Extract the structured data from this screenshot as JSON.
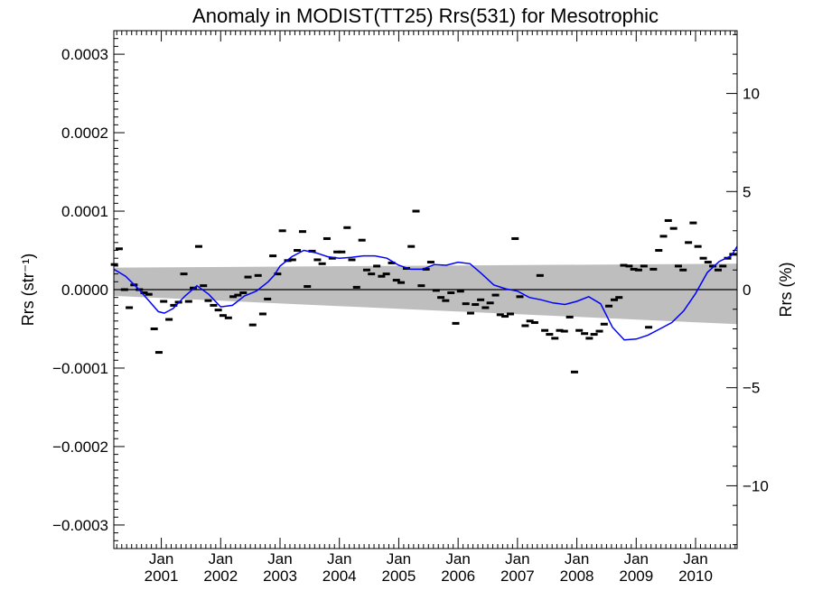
{
  "chart_data": {
    "type": "line",
    "title": "Anomaly in MODIST(TT25) Rrs(531) for Mesotrophic",
    "ylabel_left": "Rrs (str⁻¹)",
    "ylabel_right": "Rrs (%)",
    "xlim": [
      2000.2,
      2010.7
    ],
    "ylim": [
      -0.00033,
      0.00033
    ],
    "ylim_right": [
      -13.2,
      13.2
    ],
    "grid": false,
    "zero_line": true,
    "x_ticks": [
      {
        "month": "Jan",
        "year": "2001"
      },
      {
        "month": "Jan",
        "year": "2002"
      },
      {
        "month": "Jan",
        "year": "2003"
      },
      {
        "month": "Jan",
        "year": "2004"
      },
      {
        "month": "Jan",
        "year": "2005"
      },
      {
        "month": "Jan",
        "year": "2006"
      },
      {
        "month": "Jan",
        "year": "2007"
      },
      {
        "month": "Jan",
        "year": "2008"
      },
      {
        "month": "Jan",
        "year": "2009"
      },
      {
        "month": "Jan",
        "year": "2010"
      }
    ],
    "y_ticks_left": [
      {
        "v": 0.0003,
        "label": "0.0003"
      },
      {
        "v": 0.0002,
        "label": "0.0002"
      },
      {
        "v": 0.0001,
        "label": "0.0001"
      },
      {
        "v": 0.0,
        "label": "0.0000"
      },
      {
        "v": -0.0001,
        "label": "−0.0001"
      },
      {
        "v": -0.0002,
        "label": "−0.0002"
      },
      {
        "v": -0.0003,
        "label": "−0.0003"
      }
    ],
    "y_ticks_right": [
      {
        "v": 10,
        "label": "10"
      },
      {
        "v": 5,
        "label": "5"
      },
      {
        "v": 0,
        "label": "0"
      },
      {
        "v": -5,
        "label": "−5"
      },
      {
        "v": -10,
        "label": "−10"
      }
    ],
    "band": {
      "color": "#bebebe",
      "x": [
        2000.2,
        2010.7
      ],
      "upper": [
        2.8e-05,
        3.3e-05
      ],
      "lower": [
        -8e-06,
        -4.4e-05
      ]
    },
    "series": [
      {
        "kind": "points",
        "color": "#000000",
        "x": [
          2000.21,
          2000.29,
          2000.38,
          2000.46,
          2000.54,
          2000.63,
          2000.71,
          2000.79,
          2000.88,
          2000.96,
          2001.04,
          2001.13,
          2001.21,
          2001.29,
          2001.38,
          2001.46,
          2001.54,
          2001.63,
          2001.71,
          2001.79,
          2001.88,
          2001.96,
          2002.04,
          2002.13,
          2002.21,
          2002.29,
          2002.38,
          2002.46,
          2002.54,
          2002.63,
          2002.71,
          2002.79,
          2002.88,
          2002.96,
          2003.04,
          2003.13,
          2003.21,
          2003.29,
          2003.38,
          2003.46,
          2003.54,
          2003.63,
          2003.71,
          2003.79,
          2003.88,
          2003.96,
          2004.04,
          2004.13,
          2004.21,
          2004.29,
          2004.38,
          2004.46,
          2004.54,
          2004.63,
          2004.71,
          2004.79,
          2004.88,
          2004.96,
          2005.04,
          2005.13,
          2005.21,
          2005.29,
          2005.38,
          2005.46,
          2005.54,
          2005.63,
          2005.71,
          2005.79,
          2005.88,
          2005.96,
          2006.04,
          2006.13,
          2006.21,
          2006.29,
          2006.38,
          2006.46,
          2006.54,
          2006.63,
          2006.71,
          2006.79,
          2006.88,
          2006.96,
          2007.04,
          2007.13,
          2007.21,
          2007.29,
          2007.38,
          2007.46,
          2007.54,
          2007.63,
          2007.71,
          2007.79,
          2007.88,
          2007.96,
          2008.04,
          2008.13,
          2008.21,
          2008.29,
          2008.38,
          2008.46,
          2008.54,
          2008.63,
          2008.71,
          2008.79,
          2008.88,
          2008.96,
          2009.04,
          2009.13,
          2009.21,
          2009.29,
          2009.38,
          2009.46,
          2009.54,
          2009.63,
          2009.71,
          2009.79,
          2009.88,
          2009.96,
          2010.04,
          2010.13,
          2010.21,
          2010.29,
          2010.38,
          2010.46,
          2010.54,
          2010.63
        ],
        "y": [
          3.2e-05,
          5.2e-05,
          0.0,
          -2.3e-05,
          6e-06,
          0.0,
          -4e-06,
          -6e-06,
          -5e-05,
          -8e-05,
          -1.5e-05,
          -3.8e-05,
          -2e-05,
          -1.6e-05,
          2e-05,
          -1.5e-05,
          2e-06,
          5.5e-05,
          5e-06,
          -1.4e-05,
          -2e-05,
          -2.6e-05,
          -3.3e-05,
          -3.6e-05,
          -9e-06,
          -7e-06,
          -4e-06,
          1.6e-05,
          -4.5e-05,
          1.8e-05,
          -3.1e-05,
          -1.2e-05,
          4.3e-05,
          2e-05,
          7.5e-05,
          3.7e-05,
          3.8e-05,
          5e-05,
          7.4e-05,
          4e-06,
          4.9e-05,
          3.8e-05,
          3.3e-05,
          6.5e-05,
          4e-05,
          4.8e-05,
          4.8e-05,
          7.9e-05,
          3.8e-05,
          3e-06,
          6.3e-05,
          2.5e-05,
          2e-05,
          3e-05,
          1.7e-05,
          2e-05,
          3.4e-05,
          1.2e-05,
          9e-06,
          2.7e-05,
          5.5e-05,
          0.0001,
          5e-06,
          2.6e-05,
          3.5e-05,
          -1e-06,
          -1e-05,
          -1.4e-05,
          -4e-06,
          -4.3e-05,
          -2e-06,
          -1.8e-05,
          -3e-05,
          -1.9e-05,
          -1.3e-05,
          -2.3e-05,
          -1.7e-05,
          -7e-06,
          -3.2e-05,
          -3.4e-05,
          -3.1e-05,
          6.5e-05,
          -9e-06,
          -4.6e-05,
          -4e-05,
          -4.2e-05,
          1.8e-05,
          -5.2e-05,
          -5.7e-05,
          -6.2e-05,
          -5.2e-05,
          -5.3e-05,
          -3.5e-05,
          -0.000105,
          -5.2e-05,
          -5.6e-05,
          -6.2e-05,
          -5.7e-05,
          -5.3e-05,
          -4.4e-05,
          -2.1e-05,
          -1.3e-05,
          -1e-05,
          3.1e-05,
          3e-05,
          2.6e-05,
          2.5e-05,
          3e-05,
          -4.8e-05,
          2.6e-05,
          5e-05,
          6.8e-05,
          8.8e-05,
          7.8e-05,
          3e-05,
          2.5e-05,
          6e-05,
          8.5e-05,
          5.5e-05,
          4e-05,
          3.5e-05,
          3e-05,
          2.5e-05,
          3e-05,
          4e-05,
          4.5e-05
        ]
      },
      {
        "kind": "line",
        "color": "#0000ff",
        "x": [
          2000.2,
          2000.4,
          2000.6,
          2000.8,
          2000.95,
          2001.05,
          2001.2,
          2001.4,
          2001.6,
          2001.8,
          2002.0,
          2002.2,
          2002.4,
          2002.6,
          2002.8,
          2002.9,
          2003.0,
          2003.2,
          2003.4,
          2003.6,
          2003.8,
          2004.0,
          2004.2,
          2004.4,
          2004.6,
          2004.8,
          2005.0,
          2005.2,
          2005.4,
          2005.6,
          2005.8,
          2006.0,
          2006.2,
          2006.4,
          2006.6,
          2006.8,
          2007.0,
          2007.2,
          2007.4,
          2007.6,
          2007.8,
          2008.0,
          2008.2,
          2008.4,
          2008.6,
          2008.8,
          2009.0,
          2009.2,
          2009.4,
          2009.6,
          2009.8,
          2010.0,
          2010.2,
          2010.4,
          2010.6,
          2010.7
        ],
        "y": [
          2.6e-05,
          1.7e-05,
          2e-06,
          -1.5e-05,
          -2.8e-05,
          -3e-05,
          -2.4e-05,
          -8e-06,
          5e-06,
          -6e-06,
          -2.2e-05,
          -2e-05,
          -8e-06,
          -2e-06,
          1e-05,
          1.8e-05,
          3e-05,
          4.2e-05,
          5e-05,
          4.7e-05,
          4.2e-05,
          4e-05,
          4.1e-05,
          4.3e-05,
          4.3e-05,
          4e-05,
          3.1e-05,
          2.6e-05,
          2.6e-05,
          3.2e-05,
          3.1e-05,
          3.5e-05,
          3.3e-05,
          2e-05,
          6e-06,
          1e-06,
          -2e-06,
          -1e-05,
          -1.3e-05,
          -1.7e-05,
          -1.9e-05,
          -1.5e-05,
          -9e-06,
          -1.8e-05,
          -4.8e-05,
          -6.4e-05,
          -6.3e-05,
          -5.8e-05,
          -5e-05,
          -4.2e-05,
          -2.7e-05,
          -5e-06,
          2.2e-05,
          3.6e-05,
          4.3e-05,
          5.5e-05
        ]
      }
    ]
  }
}
